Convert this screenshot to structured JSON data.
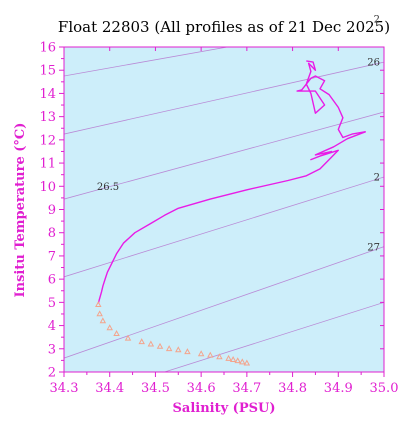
{
  "chart_data": {
    "type": "line",
    "title": "Float 22803  (All profiles as of 21 Dec 2025)",
    "xlabel": "Salinity (PSU)",
    "ylabel": "Insitu Temperature (°C)",
    "xlim": [
      34.3,
      35.0
    ],
    "ylim": [
      2,
      16
    ],
    "xticks": [
      "34.3",
      "34.4",
      "34.5",
      "34.6",
      "34.7",
      "34.8",
      "34.9",
      "35.0"
    ],
    "yticks": [
      "2",
      "3",
      "4",
      "5",
      "6",
      "7",
      "8",
      "9",
      "10",
      "11",
      "12",
      "13",
      "14",
      "15",
      "16"
    ],
    "grid": false,
    "legend": "none",
    "colors": {
      "plot_background": "#cdeefa",
      "axis": "#e01fd0",
      "profile_line": "#e81ce6",
      "deep_markers": "#f4a48c",
      "density_contours": "#b98ad6"
    },
    "density_contours": [
      {
        "label": "26.5",
        "points": [
          [
            34.3,
            9.45
          ],
          [
            35.0,
            13.2
          ]
        ]
      },
      {
        "label": "26",
        "points": [
          [
            34.3,
            12.25
          ],
          [
            35.0,
            15.35
          ]
        ]
      },
      {
        "label": "2",
        "points": [
          [
            34.3,
            14.75
          ],
          [
            35.0,
            17.2
          ]
        ]
      },
      {
        "label": "2",
        "points": [
          [
            34.3,
            6.1
          ],
          [
            35.0,
            10.4
          ]
        ]
      },
      {
        "label": "27",
        "points": [
          [
            34.3,
            2.6
          ],
          [
            35.0,
            7.4
          ]
        ]
      },
      {
        "label": "",
        "points": [
          [
            34.52,
            2.0
          ],
          [
            35.0,
            5.0
          ]
        ]
      }
    ],
    "series": [
      {
        "type": "line",
        "points": [
          [
            34.96,
            12.35
          ],
          [
            34.92,
            12.05
          ],
          [
            34.89,
            11.7
          ],
          [
            34.85,
            11.35
          ],
          [
            34.885,
            11.5
          ],
          [
            34.84,
            11.15
          ],
          [
            34.86,
            11.3
          ],
          [
            34.9,
            11.55
          ],
          [
            34.875,
            11.05
          ],
          [
            34.86,
            10.75
          ],
          [
            34.83,
            10.45
          ],
          [
            34.79,
            10.25
          ],
          [
            34.7,
            9.85
          ],
          [
            34.62,
            9.45
          ],
          [
            34.55,
            9.05
          ],
          [
            34.52,
            8.75
          ],
          [
            34.49,
            8.4
          ],
          [
            34.455,
            8.0
          ],
          [
            34.43,
            7.55
          ],
          [
            34.415,
            7.1
          ],
          [
            34.405,
            6.7
          ],
          [
            34.395,
            6.3
          ],
          [
            34.39,
            6.0
          ],
          [
            34.385,
            5.7
          ],
          [
            34.382,
            5.45
          ],
          [
            34.377,
            5.1
          ],
          [
            34.375,
            4.95
          ]
        ]
      },
      {
        "type": "line",
        "points": [
          [
            34.96,
            12.35
          ],
          [
            34.93,
            12.25
          ],
          [
            34.91,
            12.1
          ],
          [
            34.9,
            12.45
          ],
          [
            34.91,
            12.95
          ],
          [
            34.9,
            13.4
          ],
          [
            34.88,
            13.95
          ],
          [
            34.86,
            14.2
          ],
          [
            34.87,
            14.55
          ],
          [
            34.85,
            14.75
          ],
          [
            34.84,
            14.65
          ],
          [
            34.82,
            14.15
          ],
          [
            34.81,
            14.1
          ],
          [
            34.85,
            14.1
          ],
          [
            34.87,
            13.5
          ],
          [
            34.85,
            13.15
          ],
          [
            34.84,
            14.0
          ],
          [
            34.83,
            14.4
          ],
          [
            34.84,
            14.95
          ],
          [
            34.835,
            15.3
          ],
          [
            34.85,
            15.0
          ],
          [
            34.845,
            15.35
          ],
          [
            34.83,
            15.4
          ]
        ]
      },
      {
        "type": "scatter",
        "points": [
          [
            34.375,
            4.9
          ],
          [
            34.378,
            4.5
          ],
          [
            34.385,
            4.2
          ],
          [
            34.4,
            3.9
          ],
          [
            34.415,
            3.65
          ],
          [
            34.44,
            3.45
          ],
          [
            34.47,
            3.3
          ],
          [
            34.49,
            3.2
          ],
          [
            34.51,
            3.1
          ],
          [
            34.53,
            3.0
          ],
          [
            34.55,
            2.95
          ],
          [
            34.57,
            2.87
          ],
          [
            34.6,
            2.78
          ],
          [
            34.62,
            2.72
          ],
          [
            34.64,
            2.65
          ],
          [
            34.66,
            2.58
          ],
          [
            34.67,
            2.53
          ],
          [
            34.68,
            2.48
          ],
          [
            34.69,
            2.43
          ],
          [
            34.7,
            2.38
          ]
        ]
      }
    ]
  }
}
